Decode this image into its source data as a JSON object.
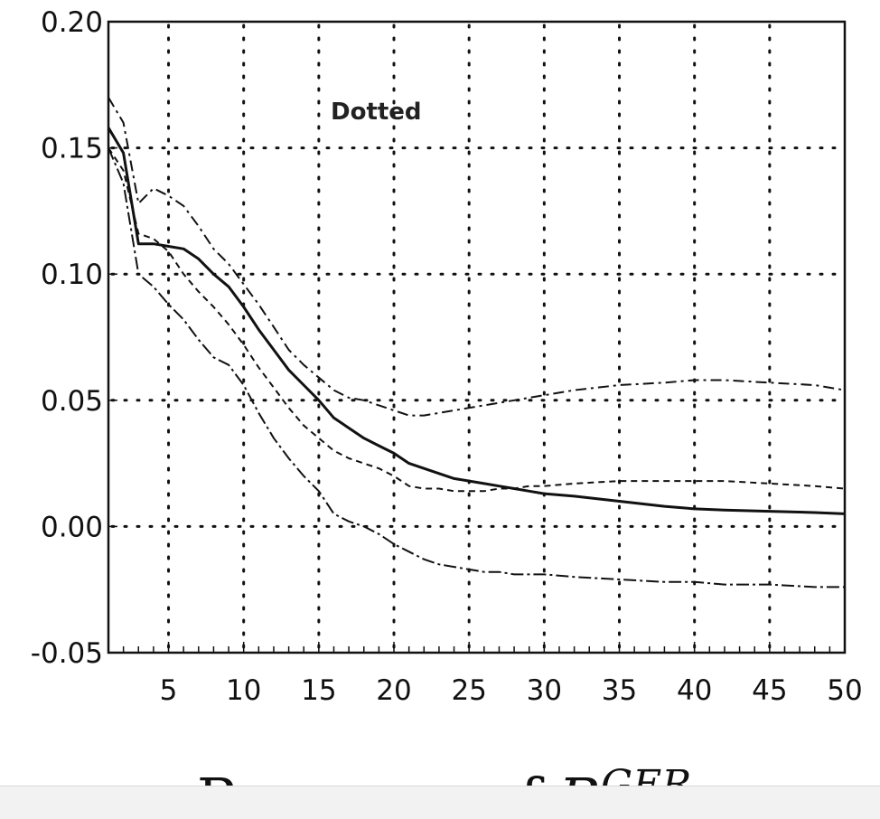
{
  "chart_data": {
    "type": "line",
    "title": "",
    "xlabel": "",
    "ylabel": "",
    "xlim": [
      1,
      50
    ],
    "ylim": [
      -0.05,
      0.2
    ],
    "grid": true,
    "x_ticks": [
      5,
      10,
      15,
      20,
      25,
      30,
      35,
      40,
      45,
      50
    ],
    "x_tick_labels": [
      "5",
      "10",
      "15",
      "20",
      "25",
      "30",
      "35",
      "40",
      "45",
      "50"
    ],
    "y_ticks": [
      -0.05,
      0.0,
      0.05,
      0.1,
      0.15,
      0.2
    ],
    "y_tick_labels": [
      "-0.05",
      "0.00",
      "0.05",
      "0.10",
      "0.15",
      "0.20"
    ],
    "annotation": "Dotted",
    "caption": {
      "prefix": "Response of ",
      "variable": "R",
      "superscript": "GER"
    },
    "series": [
      {
        "style": "solid",
        "x": [
          1,
          2,
          3,
          4,
          5,
          6,
          7,
          8,
          9,
          10,
          11,
          12,
          13,
          14,
          15,
          16,
          17,
          18,
          19,
          20,
          21,
          22,
          23,
          24,
          25,
          26,
          27,
          28,
          29,
          30,
          32,
          35,
          38,
          40,
          42,
          45,
          48,
          50
        ],
        "values": [
          0.158,
          0.148,
          0.112,
          0.112,
          0.111,
          0.11,
          0.106,
          0.1,
          0.095,
          0.087,
          0.078,
          0.07,
          0.062,
          0.056,
          0.05,
          0.043,
          0.039,
          0.035,
          0.032,
          0.029,
          0.025,
          0.023,
          0.021,
          0.019,
          0.018,
          0.017,
          0.016,
          0.015,
          0.014,
          0.013,
          0.012,
          0.01,
          0.008,
          0.007,
          0.0065,
          0.006,
          0.0055,
          0.005
        ]
      },
      {
        "style": "dashed",
        "x": [
          1,
          2,
          3,
          4,
          5,
          6,
          7,
          8,
          9,
          10,
          11,
          12,
          13,
          14,
          15,
          16,
          17,
          18,
          19,
          20,
          21,
          22,
          23,
          24,
          25,
          26,
          27,
          28,
          29,
          30,
          32,
          35,
          38,
          40,
          42,
          45,
          48,
          50
        ],
        "values": [
          0.17,
          0.16,
          0.128,
          0.134,
          0.131,
          0.127,
          0.119,
          0.11,
          0.104,
          0.096,
          0.088,
          0.079,
          0.07,
          0.064,
          0.059,
          0.054,
          0.051,
          0.05,
          0.048,
          0.046,
          0.044,
          0.044,
          0.045,
          0.046,
          0.047,
          0.048,
          0.049,
          0.05,
          0.051,
          0.052,
          0.054,
          0.056,
          0.057,
          0.058,
          0.058,
          0.057,
          0.056,
          0.054
        ]
      },
      {
        "style": "dash-short",
        "x": [
          1,
          2,
          3,
          4,
          5,
          6,
          7,
          8,
          9,
          10,
          11,
          12,
          13,
          14,
          15,
          16,
          17,
          18,
          19,
          20,
          21,
          22,
          23,
          24,
          25,
          26,
          27,
          28,
          29,
          30,
          32,
          35,
          38,
          40,
          42,
          45,
          48,
          50
        ],
        "values": [
          0.15,
          0.141,
          0.116,
          0.114,
          0.109,
          0.1,
          0.093,
          0.087,
          0.08,
          0.072,
          0.063,
          0.055,
          0.047,
          0.04,
          0.035,
          0.03,
          0.027,
          0.025,
          0.023,
          0.02,
          0.016,
          0.015,
          0.015,
          0.014,
          0.014,
          0.014,
          0.015,
          0.015,
          0.016,
          0.016,
          0.017,
          0.018,
          0.018,
          0.018,
          0.018,
          0.017,
          0.016,
          0.015
        ]
      },
      {
        "style": "dash-dot",
        "x": [
          1,
          2,
          3,
          4,
          5,
          6,
          7,
          8,
          9,
          10,
          11,
          12,
          13,
          14,
          15,
          16,
          17,
          18,
          19,
          20,
          21,
          22,
          23,
          24,
          25,
          26,
          27,
          28,
          29,
          30,
          32,
          35,
          38,
          40,
          42,
          45,
          48,
          50
        ],
        "values": [
          0.15,
          0.136,
          0.1,
          0.095,
          0.088,
          0.082,
          0.074,
          0.067,
          0.064,
          0.056,
          0.045,
          0.035,
          0.027,
          0.02,
          0.014,
          0.005,
          0.002,
          0.0,
          -0.003,
          -0.007,
          -0.01,
          -0.013,
          -0.015,
          -0.016,
          -0.017,
          -0.018,
          -0.018,
          -0.019,
          -0.019,
          -0.019,
          -0.02,
          -0.021,
          -0.022,
          -0.022,
          -0.023,
          -0.023,
          -0.024,
          -0.024
        ]
      }
    ]
  }
}
